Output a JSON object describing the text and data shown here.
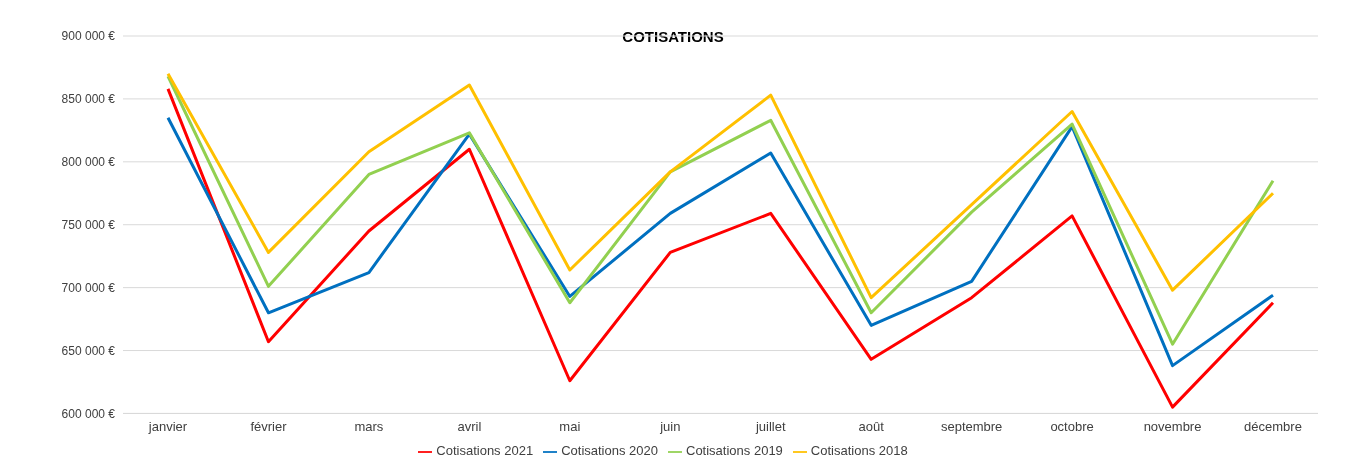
{
  "chart_data": {
    "type": "line",
    "title": "COTISATIONS",
    "categories": [
      "janvier",
      "février",
      "mars",
      "avril",
      "mai",
      "juin",
      "juillet",
      "août",
      "septembre",
      "octobre",
      "novembre",
      "décembre"
    ],
    "series": [
      {
        "name": "Cotisations 2021",
        "color": "#ff0000",
        "values": [
          858000,
          657000,
          745000,
          810000,
          626000,
          728000,
          759000,
          643000,
          692000,
          757000,
          605000,
          688000
        ]
      },
      {
        "name": "Cotisations 2020",
        "color": "#0070c0",
        "values": [
          835000,
          680000,
          712000,
          822000,
          693000,
          759000,
          807000,
          670000,
          705000,
          828000,
          638000,
          694000
        ]
      },
      {
        "name": "Cotisations 2019",
        "color": "#92d050",
        "values": [
          868000,
          701000,
          790000,
          823000,
          688000,
          792000,
          833000,
          680000,
          760000,
          830000,
          655000,
          785000
        ]
      },
      {
        "name": "Cotisations 2018",
        "color": "#ffc000",
        "values": [
          870000,
          728000,
          808000,
          861000,
          714000,
          792000,
          853000,
          692000,
          766000,
          840000,
          698000,
          775000
        ]
      }
    ],
    "ylim": [
      600000,
      900000
    ],
    "yticks": [
      {
        "value": 600000,
        "label": "600 000 €"
      },
      {
        "value": 650000,
        "label": "650 000 €"
      },
      {
        "value": 700000,
        "label": "700 000 €"
      },
      {
        "value": 750000,
        "label": "750 000 €"
      },
      {
        "value": 800000,
        "label": "800 000 €"
      },
      {
        "value": 850000,
        "label": "850 000 €"
      },
      {
        "value": 900000,
        "label": "900 000 €"
      }
    ],
    "grid": "y",
    "legend": "bottom",
    "marker": "none",
    "line_style": "solid"
  }
}
